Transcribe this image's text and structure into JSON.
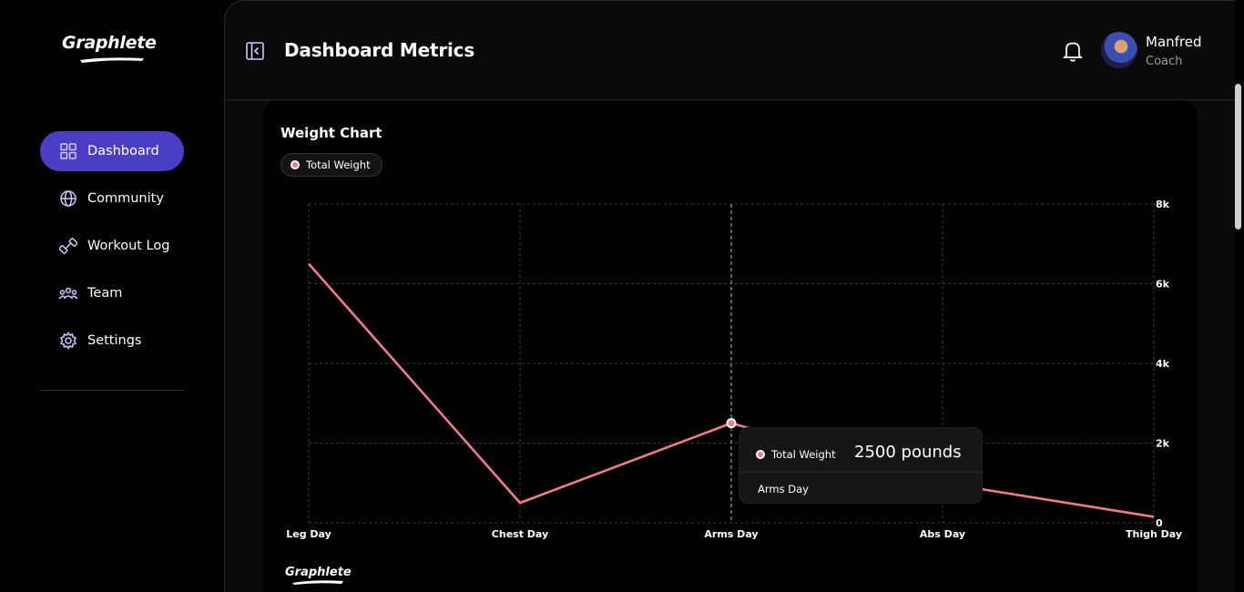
{
  "brand": {
    "logo_text": "Graphlete"
  },
  "sidebar": {
    "items": [
      {
        "label": "Dashboard",
        "icon": "grid-icon",
        "active": true
      },
      {
        "label": "Community",
        "icon": "globe-icon"
      },
      {
        "label": "Workout Log",
        "icon": "dumbbell-icon"
      },
      {
        "label": "Team",
        "icon": "team-icon"
      },
      {
        "label": "Settings",
        "icon": "gear-icon"
      }
    ]
  },
  "header": {
    "title": "Dashboard Metrics",
    "user": {
      "name": "Manfred",
      "role": "Coach"
    }
  },
  "card": {
    "title": "Weight Chart",
    "legend": "Total Weight",
    "footer_logo": "Graphlete"
  },
  "tooltip": {
    "series": "Total Weight",
    "value": "2500 pounds",
    "category": "Arms Day"
  },
  "colors": {
    "accent": "#4a3fc4",
    "line": "#f07c88"
  },
  "chart_data": {
    "type": "line",
    "categories": [
      "Leg Day",
      "Chest Day",
      "Arms Day",
      "Abs Day",
      "Thigh Day"
    ],
    "series": [
      {
        "name": "Total Weight",
        "values": [
          6500,
          500,
          2500,
          1000,
          150
        ]
      }
    ],
    "yticks": [
      "0",
      "2k",
      "4k",
      "6k",
      "8k"
    ],
    "ylim": [
      0,
      8000
    ],
    "grid": true,
    "y_axis_side": "right",
    "legend_position": "top-left"
  }
}
